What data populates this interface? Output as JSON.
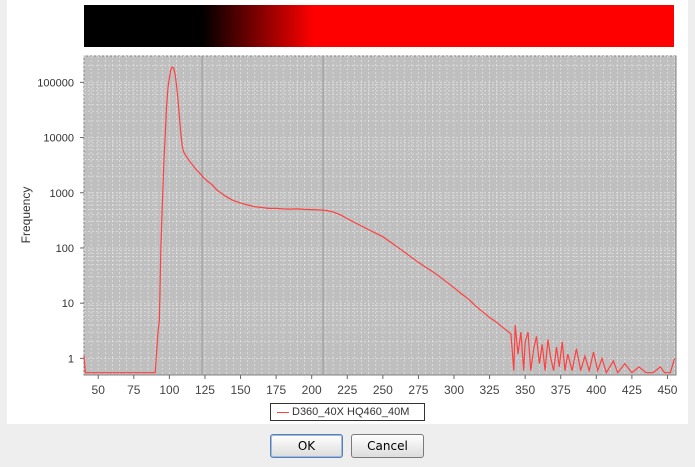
{
  "chart_data": {
    "type": "line",
    "ylabel": "Frequency",
    "xlabel": "",
    "xlim": [
      40,
      456
    ],
    "ylim": [
      0.5,
      300000
    ],
    "yscale": "log",
    "grid": true,
    "x_ticks": [
      "50",
      "75",
      "100",
      "125",
      "150",
      "175",
      "200",
      "225",
      "250",
      "275",
      "300",
      "325",
      "350",
      "375",
      "400",
      "425",
      "450"
    ],
    "y_ticks": [
      "1",
      "10",
      "100",
      "1000",
      "10000",
      "100000"
    ],
    "legend_position": "bottom-center",
    "series": [
      {
        "name": "D360_40X HQ460_40M",
        "color": "#ff4040",
        "points": [
          [
            40,
            1.1
          ],
          [
            41,
            0.55
          ],
          [
            90,
            0.55
          ],
          [
            92,
            3
          ],
          [
            93,
            5
          ],
          [
            94,
            90
          ],
          [
            95,
            600
          ],
          [
            96,
            3000
          ],
          [
            97,
            10000
          ],
          [
            98,
            35000
          ],
          [
            99,
            80000
          ],
          [
            100,
            120000
          ],
          [
            101,
            170000
          ],
          [
            102,
            190000
          ],
          [
            103,
            180000
          ],
          [
            104,
            140000
          ],
          [
            105,
            90000
          ],
          [
            106,
            50000
          ],
          [
            107,
            25000
          ],
          [
            108,
            12000
          ],
          [
            109,
            7000
          ],
          [
            110,
            5500
          ],
          [
            112,
            4500
          ],
          [
            115,
            3500
          ],
          [
            118,
            2800
          ],
          [
            121,
            2300
          ],
          [
            124,
            1900
          ],
          [
            127,
            1600
          ],
          [
            130,
            1400
          ],
          [
            133,
            1150
          ],
          [
            136,
            1000
          ],
          [
            140,
            850
          ],
          [
            145,
            720
          ],
          [
            150,
            650
          ],
          [
            155,
            600
          ],
          [
            160,
            560
          ],
          [
            165,
            540
          ],
          [
            170,
            520
          ],
          [
            175,
            520
          ],
          [
            180,
            510
          ],
          [
            185,
            505
          ],
          [
            190,
            510
          ],
          [
            195,
            500
          ],
          [
            200,
            495
          ],
          [
            205,
            490
          ],
          [
            210,
            480
          ],
          [
            215,
            450
          ],
          [
            220,
            400
          ],
          [
            225,
            340
          ],
          [
            230,
            290
          ],
          [
            235,
            250
          ],
          [
            240,
            215
          ],
          [
            245,
            185
          ],
          [
            250,
            160
          ],
          [
            255,
            130
          ],
          [
            260,
            105
          ],
          [
            265,
            85
          ],
          [
            270,
            68
          ],
          [
            275,
            55
          ],
          [
            280,
            45
          ],
          [
            285,
            37
          ],
          [
            290,
            30
          ],
          [
            295,
            24
          ],
          [
            300,
            19
          ],
          [
            305,
            15
          ],
          [
            310,
            12
          ],
          [
            315,
            9
          ],
          [
            320,
            7
          ],
          [
            325,
            5.5
          ],
          [
            330,
            4.5
          ],
          [
            335,
            3.5
          ],
          [
            340,
            2.8
          ],
          [
            342,
            0.6
          ],
          [
            343,
            4
          ],
          [
            345,
            1.2
          ],
          [
            347,
            3
          ],
          [
            349,
            0.6
          ],
          [
            350,
            2
          ],
          [
            352,
            3
          ],
          [
            354,
            0.6
          ],
          [
            356,
            1.5
          ],
          [
            358,
            2.5
          ],
          [
            360,
            0.8
          ],
          [
            362,
            1.8
          ],
          [
            364,
            0.6
          ],
          [
            366,
            2.2
          ],
          [
            368,
            1
          ],
          [
            370,
            0.6
          ],
          [
            372,
            1.6
          ],
          [
            374,
            0.7
          ],
          [
            376,
            2
          ],
          [
            378,
            0.6
          ],
          [
            380,
            1.2
          ],
          [
            383,
            0.6
          ],
          [
            386,
            1.5
          ],
          [
            389,
            0.6
          ],
          [
            392,
            1.1
          ],
          [
            395,
            0.6
          ],
          [
            398,
            1.3
          ],
          [
            401,
            0.6
          ],
          [
            404,
            1
          ],
          [
            407,
            0.55
          ],
          [
            412,
            0.9
          ],
          [
            415,
            0.55
          ],
          [
            420,
            0.8
          ],
          [
            425,
            0.55
          ],
          [
            430,
            0.7
          ],
          [
            435,
            0.55
          ],
          [
            440,
            0.55
          ],
          [
            445,
            0.7
          ],
          [
            448,
            0.55
          ],
          [
            452,
            0.55
          ],
          [
            455,
            1
          ]
        ]
      }
    ]
  },
  "buttons": {
    "ok": "OK",
    "cancel": "Cancel"
  }
}
